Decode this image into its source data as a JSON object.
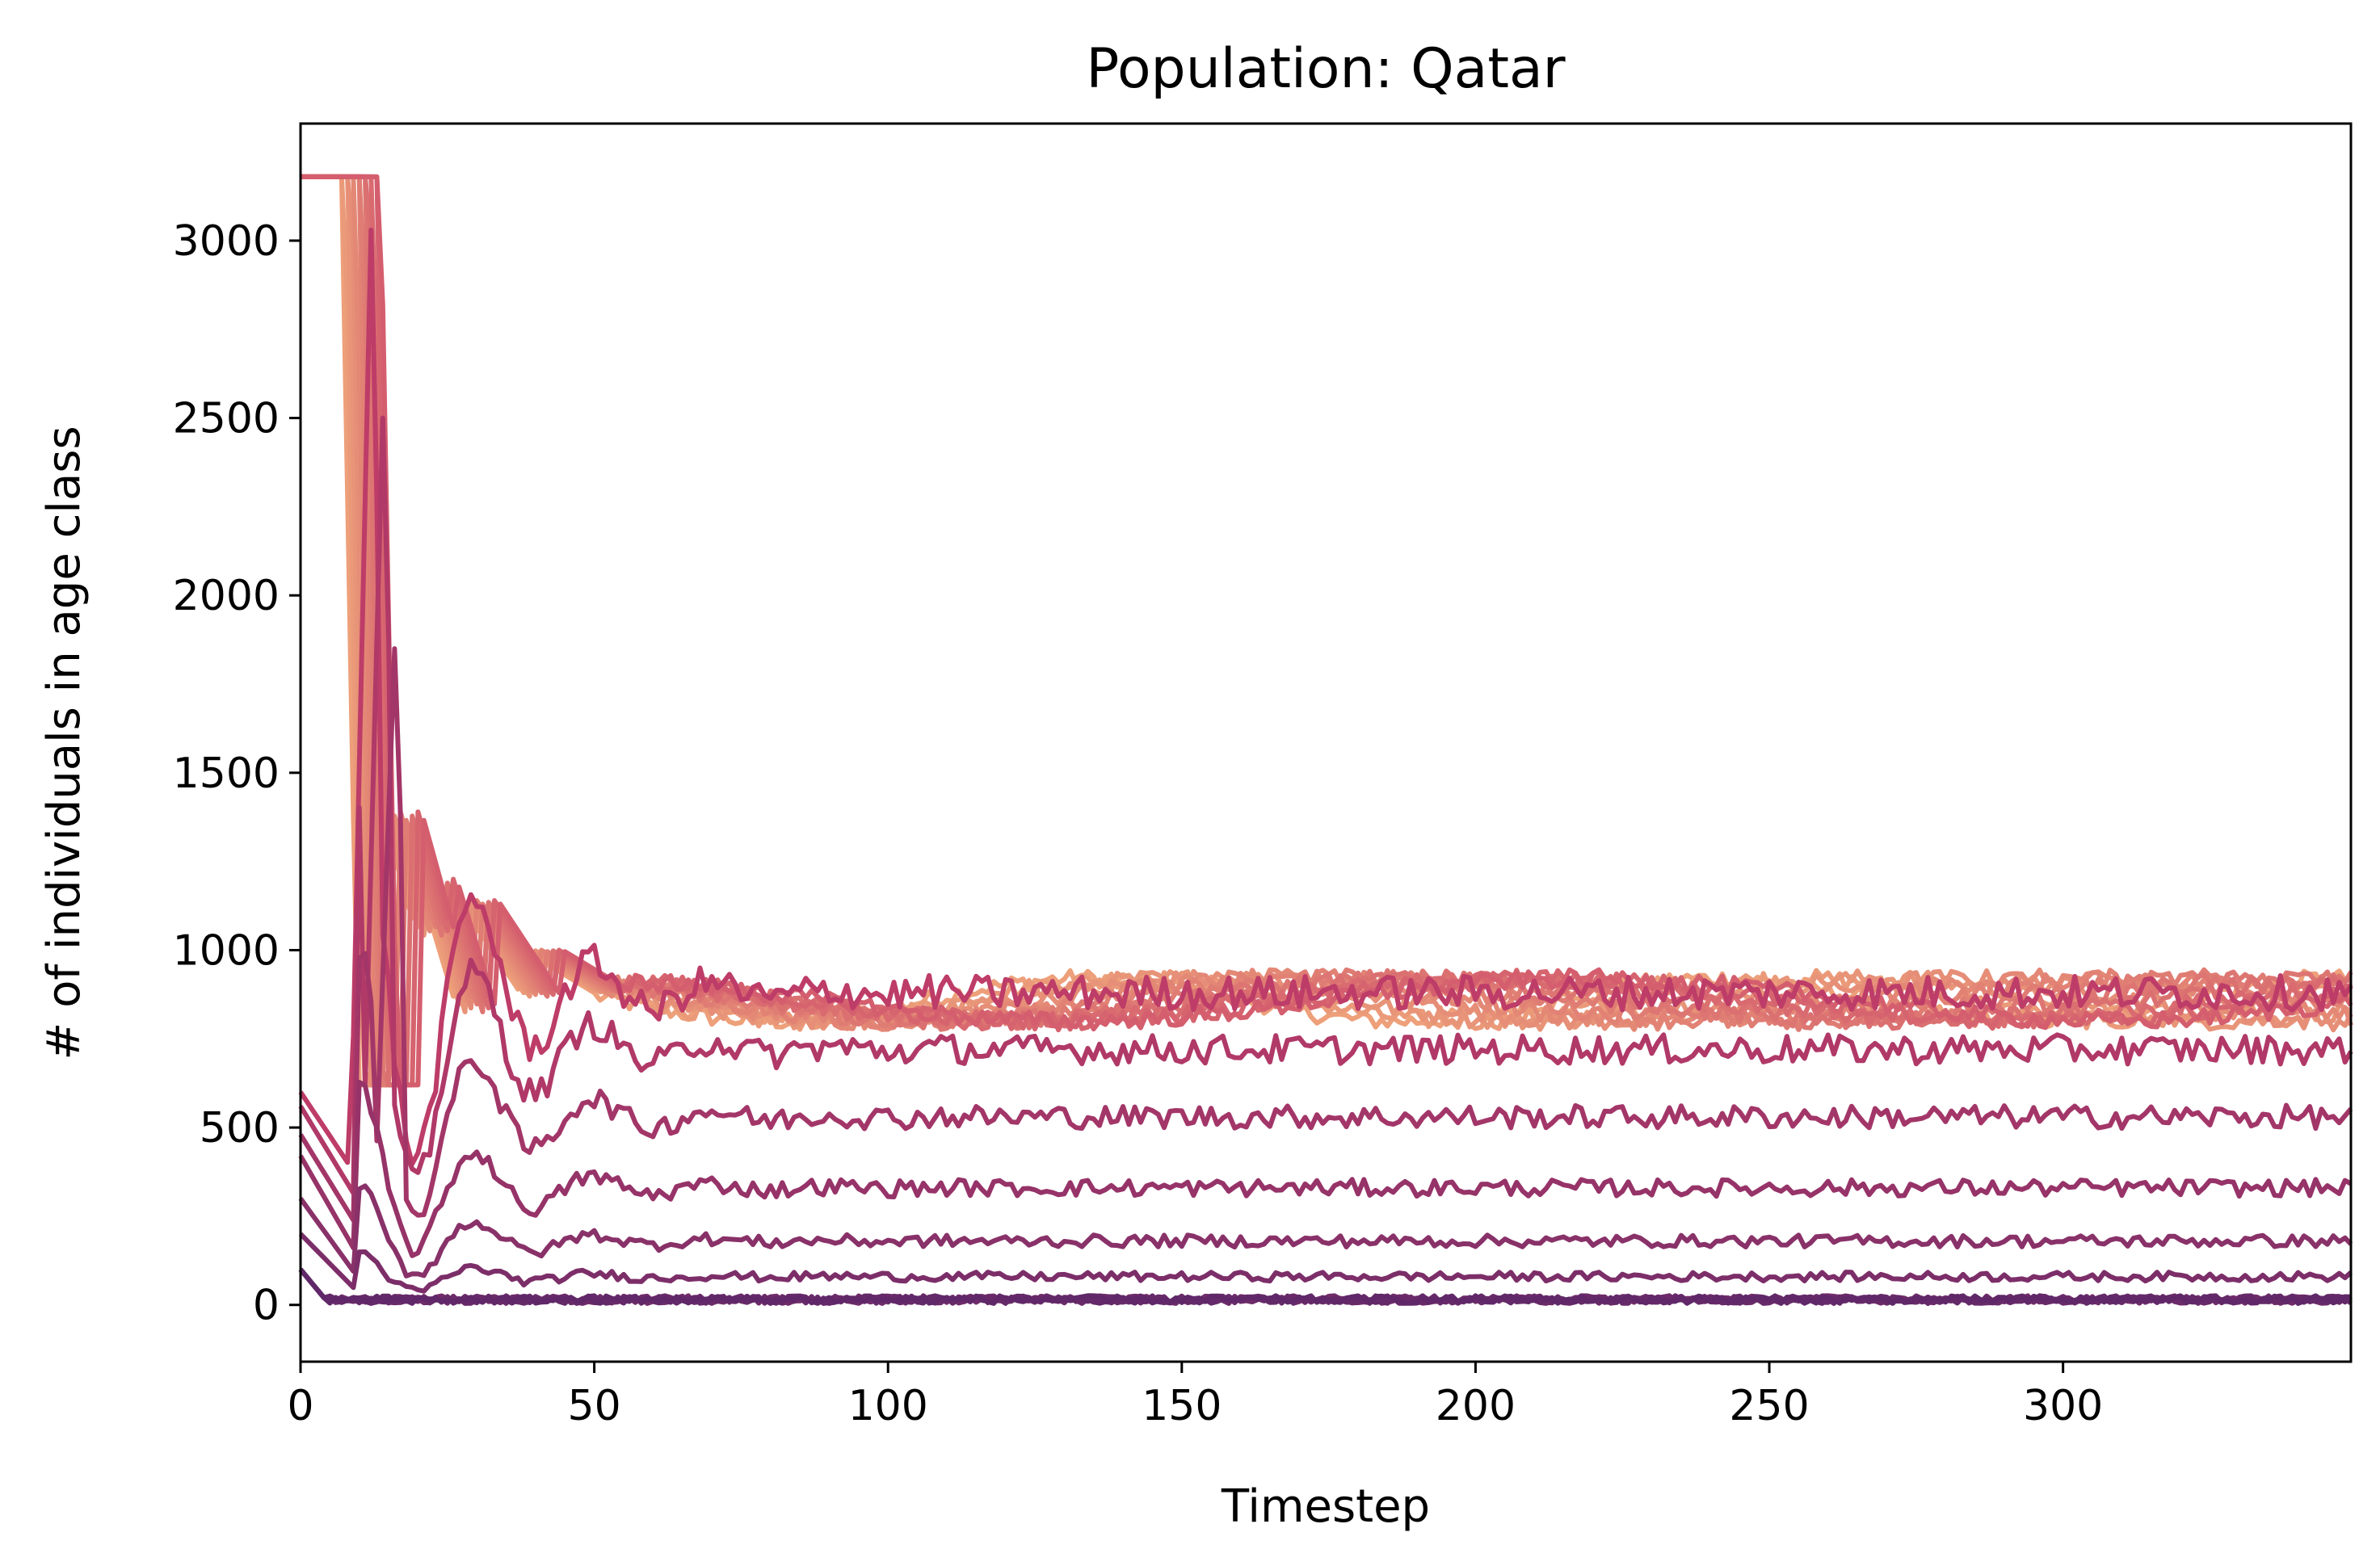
{
  "chart_data": {
    "type": "line",
    "title": "Population: Qatar",
    "xlabel": "Timestep",
    "ylabel": "# of individuals in age class",
    "xlim": [
      0,
      349
    ],
    "ylim": [
      -160,
      3330
    ],
    "x_ticks": [
      0,
      50,
      100,
      150,
      200,
      250,
      300
    ],
    "x_tick_labels": [
      "0",
      "50",
      "100",
      "150",
      "200",
      "250",
      "300"
    ],
    "y_ticks": [
      0,
      500,
      1000,
      1500,
      2000,
      2500,
      3000
    ],
    "y_tick_labels": [
      "0",
      "500",
      "1000",
      "1500",
      "2000",
      "2500",
      "3000"
    ],
    "grid": false,
    "legend": "none",
    "palette": "flare (light orange to dark purple)",
    "color_light": "#EDA07A",
    "color_dark": "#5B2769",
    "series_groups": [
      {
        "count": 12,
        "initial_value": 3180,
        "drop_timestep": 7,
        "peaks": [
          [
            15,
            1390
          ],
          [
            22,
            1200
          ],
          [
            32,
            1140
          ],
          [
            43,
            1000
          ],
          [
            55,
            960
          ]
        ],
        "steady_range": [
          820,
          960
        ]
      },
      {
        "count": 1,
        "initial_value": 600,
        "peak": [
          12,
          3030
        ],
        "steady_level": 880
      },
      {
        "count": 1,
        "initial_value": 560,
        "peak": [
          14,
          2500
        ],
        "steady_level": 720
      },
      {
        "count": 1,
        "initial_value": 480,
        "peak": [
          16,
          1850
        ],
        "steady_level": 530
      },
      {
        "count": 1,
        "initial_value": 420,
        "steady_level": 330
      },
      {
        "count": 1,
        "initial_value": 300,
        "steady_level": 180
      },
      {
        "count": 1,
        "initial_value": 200,
        "steady_level": 80
      },
      {
        "count": 6,
        "initial_value": 100,
        "steady_level": 15
      }
    ]
  }
}
